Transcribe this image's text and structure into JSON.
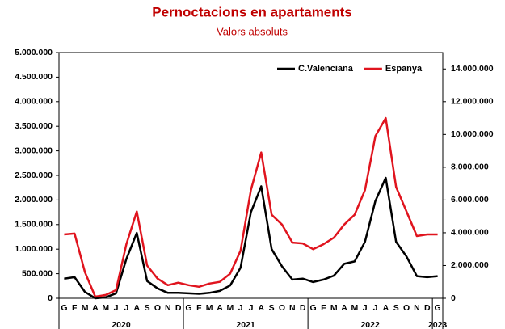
{
  "chart_data": {
    "type": "line",
    "title": "Pernoctacions en apartaments",
    "subtitle": "Valors absoluts",
    "categories": [
      "G",
      "F",
      "M",
      "A",
      "M",
      "J",
      "J",
      "A",
      "S",
      "O",
      "N",
      "D",
      "G",
      "F",
      "M",
      "A",
      "M",
      "J",
      "J",
      "A",
      "S",
      "O",
      "N",
      "D",
      "G",
      "F",
      "M",
      "A",
      "M",
      "J",
      "J",
      "A",
      "S",
      "O",
      "N",
      "D",
      "G"
    ],
    "year_labels": [
      "2020",
      "2021",
      "2022",
      "2023"
    ],
    "series": [
      {
        "name": "C.Valenciana",
        "color": "#000000",
        "values": [
          400000,
          430000,
          130000,
          0,
          20000,
          100000,
          800000,
          1330000,
          350000,
          200000,
          110000,
          110000,
          100000,
          90000,
          110000,
          150000,
          260000,
          620000,
          1750000,
          2280000,
          1000000,
          650000,
          380000,
          400000,
          330000,
          380000,
          460000,
          700000,
          750000,
          1150000,
          1980000,
          2450000,
          1150000,
          850000,
          450000,
          430000,
          450000
        ]
      },
      {
        "name": "Espanya",
        "color": "#e0141e",
        "axis": "y2",
        "values": [
          3900000,
          3950000,
          1600000,
          100000,
          200000,
          500000,
          3300000,
          5300000,
          2000000,
          1200000,
          800000,
          950000,
          800000,
          700000,
          900000,
          1000000,
          1500000,
          2900000,
          6600000,
          8900000,
          5100000,
          4500000,
          3400000,
          3350000,
          3000000,
          3300000,
          3700000,
          4500000,
          5100000,
          6600000,
          9900000,
          11000000,
          6800000,
          5300000,
          3800000,
          3900000,
          3900000
        ]
      }
    ],
    "ylim": [
      0,
      5000000
    ],
    "yticks": [
      0,
      {
        "value": 500000,
        "label": "500.000"
      },
      {
        "value": 1000000,
        "label": "1.000.000"
      },
      {
        "value": 1500000,
        "label": "1.500.000"
      },
      {
        "value": 2000000,
        "label": "2.000.000"
      },
      {
        "value": 2500000,
        "label": "2.500.000"
      },
      {
        "value": 3000000,
        "label": "3.000.000"
      },
      {
        "value": 3500000,
        "label": "3.500.000"
      },
      {
        "value": 4000000,
        "label": "4.000.000"
      },
      {
        "value": 4500000,
        "label": "4.500.000"
      },
      {
        "value": 5000000,
        "label": "5.000.000"
      }
    ],
    "y2lim": [
      0,
      15000000
    ],
    "y2ticks": [
      0,
      {
        "value": 2000000,
        "label": "2.000.000"
      },
      {
        "value": 4000000,
        "label": "4.000.000"
      },
      {
        "value": 6000000,
        "label": "6.000.000"
      },
      {
        "value": 8000000,
        "label": "8.000.000"
      },
      {
        "value": 10000000,
        "label": "10.000.000"
      },
      {
        "value": 12000000,
        "label": "12.000.000"
      },
      {
        "value": 14000000,
        "label": "14.000.000"
      }
    ],
    "legend": "upper right"
  }
}
